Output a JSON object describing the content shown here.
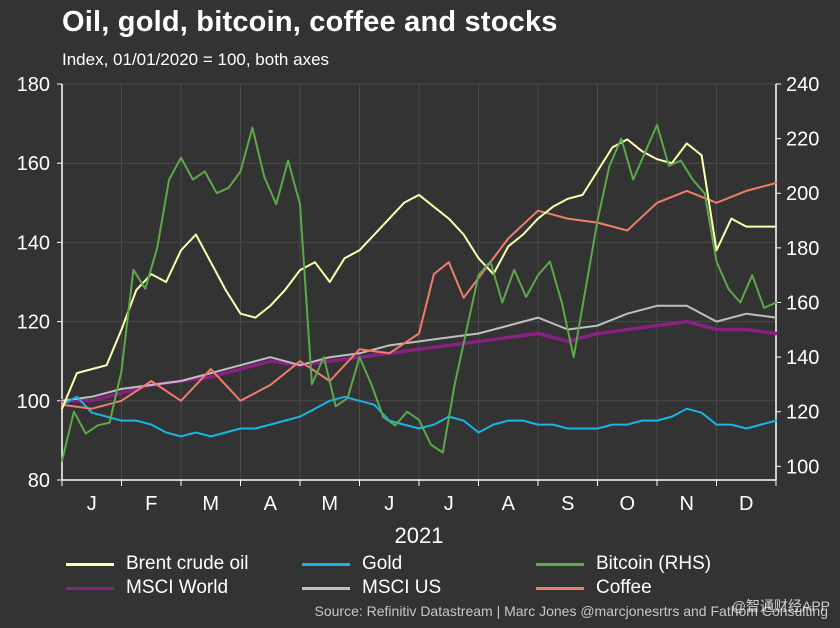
{
  "header": {
    "title": "Oil, gold, bitcoin, coffee and stocks",
    "subtitle": "Index, 01/01/2020 = 100, both axes"
  },
  "source_text": "Source: Refinitiv Datastream | Marc Jones @marcjonesrtrs and Fathom Consulting",
  "watermark_text": "@智通财经APP",
  "chart_data": {
    "type": "line",
    "title": "Oil, gold, bitcoin, coffee and stocks",
    "subtitle": "Index, 01/01/2020 = 100, both axes",
    "xlabel": "2021",
    "x_tick_labels": [
      "J",
      "F",
      "M",
      "A",
      "M",
      "J",
      "J",
      "A",
      "S",
      "O",
      "N",
      "D"
    ],
    "x_range": [
      0,
      12
    ],
    "ylim_left": [
      80,
      180
    ],
    "yticks_left": [
      80,
      100,
      120,
      140,
      160,
      180
    ],
    "ylim_right": [
      95,
      240
    ],
    "yticks_right": [
      100,
      120,
      140,
      160,
      180,
      200,
      220,
      240
    ],
    "grid": true,
    "legend_position": "bottom",
    "series": [
      {
        "name": "Brent crude oil",
        "axis": "left",
        "color": "#ffffb0",
        "x": [
          0,
          0.25,
          0.5,
          0.75,
          1.0,
          1.25,
          1.5,
          1.75,
          2.0,
          2.25,
          2.5,
          2.75,
          3.0,
          3.25,
          3.5,
          3.75,
          4.0,
          4.25,
          4.5,
          4.75,
          5.0,
          5.25,
          5.5,
          5.75,
          6.0,
          6.25,
          6.5,
          6.75,
          7.0,
          7.25,
          7.5,
          7.75,
          8.0,
          8.25,
          8.5,
          8.75,
          9.0,
          9.25,
          9.5,
          9.75,
          10.0,
          10.25,
          10.5,
          10.75,
          11.0,
          11.25,
          11.5,
          11.75,
          12.0
        ],
        "values": [
          98,
          107,
          108,
          109,
          118,
          128,
          132,
          130,
          138,
          142,
          135,
          128,
          122,
          121,
          124,
          128,
          133,
          135,
          130,
          136,
          138,
          142,
          146,
          150,
          152,
          149,
          146,
          142,
          136,
          132,
          139,
          142,
          146,
          149,
          151,
          152,
          158,
          164,
          166,
          163,
          161,
          160,
          165,
          162,
          138,
          146,
          144,
          144,
          144
        ]
      },
      {
        "name": "Gold",
        "axis": "left",
        "color": "#19b4e6",
        "x": [
          0,
          0.25,
          0.5,
          0.75,
          1.0,
          1.25,
          1.5,
          1.75,
          2.0,
          2.25,
          2.5,
          2.75,
          3.0,
          3.25,
          3.5,
          3.75,
          4.0,
          4.25,
          4.5,
          4.75,
          5.0,
          5.25,
          5.5,
          5.75,
          6.0,
          6.25,
          6.5,
          6.75,
          7.0,
          7.25,
          7.5,
          7.75,
          8.0,
          8.25,
          8.5,
          8.75,
          9.0,
          9.25,
          9.5,
          9.75,
          10.0,
          10.25,
          10.5,
          10.75,
          11.0,
          11.25,
          11.5,
          11.75,
          12.0
        ],
        "values": [
          99,
          101,
          97,
          96,
          95,
          95,
          94,
          92,
          91,
          92,
          91,
          92,
          93,
          93,
          94,
          95,
          96,
          98,
          100,
          101,
          100,
          99,
          95,
          94,
          93,
          94,
          96,
          95,
          92,
          94,
          95,
          95,
          94,
          94,
          93,
          93,
          93,
          94,
          94,
          95,
          95,
          96,
          98,
          97,
          94,
          94,
          93,
          94,
          95
        ]
      },
      {
        "name": "Bitcoin (RHS)",
        "axis": "right",
        "color": "#5ca84a",
        "x": [
          0,
          0.2,
          0.4,
          0.6,
          0.8,
          1.0,
          1.2,
          1.4,
          1.6,
          1.8,
          2.0,
          2.2,
          2.4,
          2.6,
          2.8,
          3.0,
          3.2,
          3.4,
          3.6,
          3.8,
          4.0,
          4.2,
          4.4,
          4.6,
          4.8,
          5.0,
          5.2,
          5.4,
          5.6,
          5.8,
          6.0,
          6.2,
          6.4,
          6.6,
          6.8,
          7.0,
          7.2,
          7.4,
          7.6,
          7.8,
          8.0,
          8.2,
          8.4,
          8.6,
          8.8,
          9.0,
          9.2,
          9.4,
          9.6,
          9.8,
          10.0,
          10.2,
          10.4,
          10.6,
          10.8,
          11.0,
          11.2,
          11.4,
          11.6,
          11.8,
          12.0
        ],
        "values": [
          102,
          120,
          112,
          115,
          116,
          135,
          172,
          165,
          180,
          205,
          213,
          205,
          208,
          200,
          202,
          208,
          224,
          206,
          196,
          212,
          196,
          130,
          140,
          122,
          125,
          140,
          130,
          118,
          115,
          120,
          117,
          108,
          105,
          130,
          150,
          170,
          175,
          160,
          172,
          162,
          170,
          175,
          160,
          140,
          165,
          190,
          210,
          220,
          205,
          215,
          225,
          210,
          212,
          205,
          200,
          175,
          165,
          160,
          170,
          158,
          160
        ]
      },
      {
        "name": "MSCI World",
        "axis": "left",
        "color": "#8a1f84",
        "x": [
          0,
          0.5,
          1.0,
          1.5,
          2.0,
          2.5,
          3.0,
          3.5,
          4.0,
          4.5,
          5.0,
          5.5,
          6.0,
          6.5,
          7.0,
          7.5,
          8.0,
          8.5,
          9.0,
          9.5,
          10.0,
          10.5,
          11.0,
          11.5,
          12.0
        ],
        "values": [
          100,
          100,
          102,
          104,
          105,
          106,
          108,
          110,
          109,
          110,
          111,
          112,
          113,
          114,
          115,
          116,
          117,
          115,
          117,
          118,
          119,
          120,
          118,
          118,
          117
        ]
      },
      {
        "name": "MSCI US",
        "axis": "left",
        "color": "#bfbfbf",
        "x": [
          0,
          0.5,
          1.0,
          1.5,
          2.0,
          2.5,
          3.0,
          3.5,
          4.0,
          4.5,
          5.0,
          5.5,
          6.0,
          6.5,
          7.0,
          7.5,
          8.0,
          8.5,
          9.0,
          9.5,
          10.0,
          10.5,
          11.0,
          11.5,
          12.0
        ],
        "values": [
          100,
          101,
          103,
          104,
          105,
          107,
          109,
          111,
          109,
          111,
          112,
          114,
          115,
          116,
          117,
          119,
          121,
          118,
          119,
          122,
          124,
          124,
          120,
          122,
          121
        ]
      },
      {
        "name": "Coffee",
        "axis": "left",
        "color": "#f07c6c",
        "x": [
          0,
          0.5,
          1.0,
          1.5,
          2.0,
          2.5,
          3.0,
          3.5,
          4.0,
          4.5,
          5.0,
          5.5,
          6.0,
          6.25,
          6.5,
          6.75,
          7.0,
          7.5,
          8.0,
          8.5,
          9.0,
          9.5,
          10.0,
          10.5,
          11.0,
          11.5,
          12.0
        ],
        "values": [
          99,
          98,
          100,
          105,
          100,
          108,
          100,
          104,
          110,
          105,
          113,
          112,
          117,
          132,
          135,
          126,
          131,
          141,
          148,
          146,
          145,
          143,
          150,
          153,
          150,
          153,
          155
        ]
      }
    ]
  },
  "legend": {
    "items": [
      {
        "label": "Brent crude oil",
        "color": "#ffffb0"
      },
      {
        "label": "Gold",
        "color": "#19b4e6"
      },
      {
        "label": "Bitcoin (RHS)",
        "color": "#5ca84a"
      },
      {
        "label": "MSCI World",
        "color": "#8a1f84"
      },
      {
        "label": "MSCI US",
        "color": "#bfbfbf"
      },
      {
        "label": "Coffee",
        "color": "#f07c6c"
      }
    ]
  }
}
